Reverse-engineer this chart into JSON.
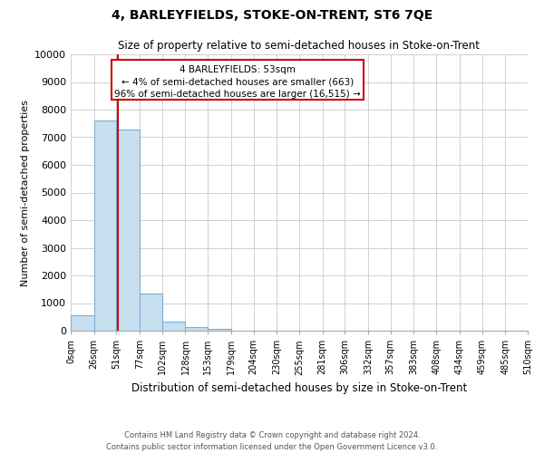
{
  "title": "4, BARLEYFIELDS, STOKE-ON-TRENT, ST6 7QE",
  "subtitle": "Size of property relative to semi-detached houses in Stoke-on-Trent",
  "xlabel": "Distribution of semi-detached houses by size in Stoke-on-Trent",
  "ylabel": "Number of semi-detached properties",
  "bin_edges": [
    0,
    26,
    51,
    77,
    102,
    128,
    153,
    179,
    204,
    230,
    255,
    281,
    306,
    332,
    357,
    383,
    408,
    434,
    459,
    485,
    510
  ],
  "bin_labels": [
    "0sqm",
    "26sqm",
    "51sqm",
    "77sqm",
    "102sqm",
    "128sqm",
    "153sqm",
    "179sqm",
    "204sqm",
    "230sqm",
    "255sqm",
    "281sqm",
    "306sqm",
    "332sqm",
    "357sqm",
    "383sqm",
    "408sqm",
    "434sqm",
    "459sqm",
    "485sqm",
    "510sqm"
  ],
  "counts": [
    550,
    7620,
    7280,
    1330,
    340,
    130,
    80,
    0,
    0,
    0,
    0,
    0,
    0,
    0,
    0,
    0,
    0,
    0,
    0,
    0
  ],
  "bar_color": "#c8dff0",
  "bar_edgecolor": "#7bafd4",
  "property_line_x": 53,
  "property_line_color": "#cc0000",
  "ylim": [
    0,
    10000
  ],
  "yticks": [
    0,
    1000,
    2000,
    3000,
    4000,
    5000,
    6000,
    7000,
    8000,
    9000,
    10000
  ],
  "annotation_line1": "4 BARLEYFIELDS: 53sqm",
  "annotation_line2": "← 4% of semi-detached houses are smaller (663)",
  "annotation_line3": "96% of semi-detached houses are larger (16,515) →",
  "footer_line1": "Contains HM Land Registry data © Crown copyright and database right 2024.",
  "footer_line2": "Contains public sector information licensed under the Open Government Licence v3.0.",
  "background_color": "#ffffff",
  "grid_color": "#d0d0d0"
}
